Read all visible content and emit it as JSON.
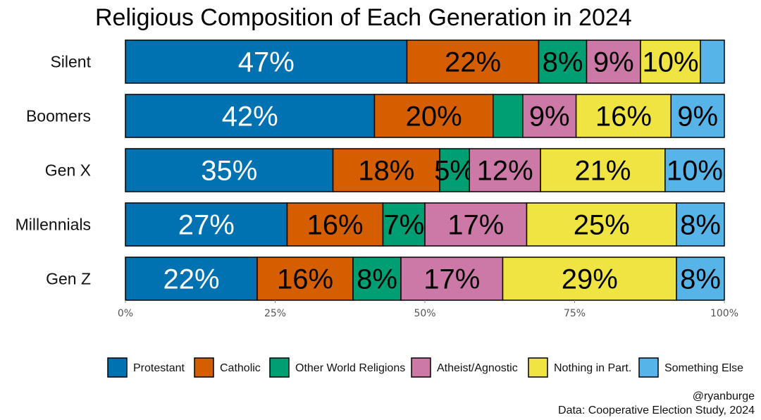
{
  "chart_data": {
    "type": "bar",
    "orientation": "horizontal",
    "stacked": true,
    "title": "Religious Composition of Each Generation in 2024",
    "categories": [
      "Silent",
      "Boomers",
      "Gen X",
      "Millennials",
      "Gen Z"
    ],
    "series": [
      {
        "name": "Protestant",
        "color": "#0072B2",
        "label_color": "#ffffff",
        "values": [
          47,
          42,
          35,
          27,
          22
        ],
        "labels": [
          "47%",
          "42%",
          "35%",
          "27%",
          "22%"
        ]
      },
      {
        "name": "Catholic",
        "color": "#D55E00",
        "label_color": "#000000",
        "values": [
          22,
          20,
          18,
          16,
          16
        ],
        "labels": [
          "22%",
          "20%",
          "18%",
          "16%",
          "16%"
        ]
      },
      {
        "name": "Other World Religions",
        "color": "#009E73",
        "label_color": "#000000",
        "values": [
          8,
          5,
          5,
          7,
          8
        ],
        "labels": [
          "8%",
          "",
          "5%",
          "7%",
          "8%"
        ]
      },
      {
        "name": "Atheist/Agnostic",
        "color": "#CC79A7",
        "label_color": "#000000",
        "values": [
          9,
          9,
          12,
          17,
          17
        ],
        "labels": [
          "9%",
          "9%",
          "12%",
          "17%",
          "17%"
        ]
      },
      {
        "name": "Nothing in Part.",
        "color": "#F0E442",
        "label_color": "#000000",
        "values": [
          10,
          16,
          21,
          25,
          29
        ],
        "labels": [
          "10%",
          "16%",
          "21%",
          "25%",
          "29%"
        ]
      },
      {
        "name": "Something Else",
        "color": "#56B4E9",
        "label_color": "#000000",
        "values": [
          4,
          9,
          10,
          8,
          8
        ],
        "labels": [
          "",
          "9%",
          "10%",
          "8%",
          "8%"
        ]
      }
    ],
    "xlim": [
      0,
      100
    ],
    "xticks": [
      0,
      25,
      50,
      75,
      100
    ],
    "xtick_labels": [
      "0%",
      "25%",
      "50%",
      "75%",
      "100%"
    ],
    "xlabel": "",
    "ylabel": "",
    "legend_position": "bottom",
    "grid": false
  },
  "credits": {
    "author": "@ryanburge",
    "source": "Data: Cooperative Election Study, 2024"
  }
}
